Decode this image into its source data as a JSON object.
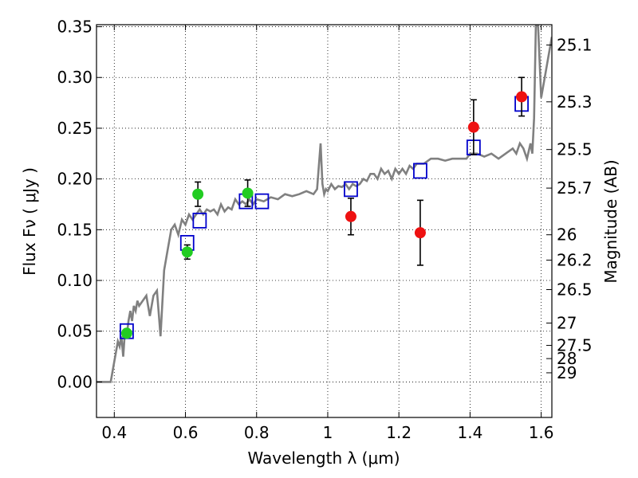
{
  "chart_data": {
    "type": "scatter",
    "xlabel": "Wavelength  λ (μm)",
    "ylabel": "Flux  Fν  ( μJy )",
    "ylabel2": "Magnitude (AB)",
    "xlim": [
      0.35,
      1.63
    ],
    "ylim": [
      -0.035,
      0.352
    ],
    "x_ticks": [
      0.4,
      0.6,
      0.8,
      1.0,
      1.2,
      1.4,
      1.6
    ],
    "x_tick_labels": [
      "0.4",
      "0.6",
      "0.8",
      "1",
      "1.2",
      "1.4",
      "1.6"
    ],
    "y_ticks": [
      0.0,
      0.05,
      0.1,
      0.15,
      0.2,
      0.25,
      0.3,
      0.35
    ],
    "y_tick_labels": [
      "0.00",
      "0.05",
      "0.10",
      "0.15",
      "0.20",
      "0.25",
      "0.30",
      "0.35"
    ],
    "mag_ticks": [
      {
        "label": "25.1",
        "flux": 0.332
      },
      {
        "label": "25.3",
        "flux": 0.276
      },
      {
        "label": "25.5",
        "flux": 0.229
      },
      {
        "label": "25.7",
        "flux": 0.191
      },
      {
        "label": "26",
        "flux": 0.145
      },
      {
        "label": "26.2",
        "flux": 0.12
      },
      {
        "label": "26.5",
        "flux": 0.091
      },
      {
        "label": "27",
        "flux": 0.058
      },
      {
        "label": "27.5",
        "flux": 0.036
      },
      {
        "label": "28",
        "flux": 0.023
      },
      {
        "label": "29",
        "flux": 0.009
      }
    ],
    "grid": true,
    "series": [
      {
        "kind": "line",
        "color": "#808080",
        "x": [
          0.35,
          0.38,
          0.39,
          0.4,
          0.41,
          0.415,
          0.42,
          0.425,
          0.43,
          0.435,
          0.44,
          0.445,
          0.45,
          0.455,
          0.46,
          0.465,
          0.47,
          0.48,
          0.49,
          0.5,
          0.51,
          0.52,
          0.53,
          0.54,
          0.55,
          0.56,
          0.57,
          0.58,
          0.59,
          0.6,
          0.61,
          0.62,
          0.63,
          0.64,
          0.65,
          0.66,
          0.67,
          0.68,
          0.69,
          0.7,
          0.71,
          0.72,
          0.73,
          0.74,
          0.75,
          0.76,
          0.77,
          0.78,
          0.79,
          0.8,
          0.82,
          0.84,
          0.86,
          0.88,
          0.9,
          0.92,
          0.94,
          0.96,
          0.97,
          0.98,
          0.985,
          0.99,
          0.995,
          1.0,
          1.01,
          1.02,
          1.03,
          1.04,
          1.05,
          1.06,
          1.07,
          1.08,
          1.09,
          1.1,
          1.11,
          1.12,
          1.13,
          1.14,
          1.15,
          1.16,
          1.17,
          1.18,
          1.19,
          1.2,
          1.21,
          1.22,
          1.23,
          1.24,
          1.25,
          1.27,
          1.29,
          1.31,
          1.33,
          1.35,
          1.37,
          1.39,
          1.4,
          1.42,
          1.44,
          1.46,
          1.48,
          1.5,
          1.52,
          1.53,
          1.54,
          1.55,
          1.56,
          1.57,
          1.575,
          1.58,
          1.585,
          1.59,
          1.6,
          1.61,
          1.62,
          1.63
        ],
        "y": [
          0.0,
          0.0,
          0.0,
          0.02,
          0.04,
          0.035,
          0.045,
          0.025,
          0.05,
          0.045,
          0.06,
          0.07,
          0.06,
          0.075,
          0.07,
          0.08,
          0.075,
          0.08,
          0.085,
          0.065,
          0.085,
          0.09,
          0.045,
          0.11,
          0.13,
          0.15,
          0.155,
          0.145,
          0.16,
          0.155,
          0.165,
          0.16,
          0.165,
          0.17,
          0.165,
          0.17,
          0.168,
          0.17,
          0.165,
          0.175,
          0.168,
          0.172,
          0.17,
          0.18,
          0.175,
          0.178,
          0.175,
          0.18,
          0.175,
          0.18,
          0.178,
          0.182,
          0.18,
          0.185,
          0.183,
          0.185,
          0.188,
          0.185,
          0.19,
          0.235,
          0.195,
          0.185,
          0.19,
          0.188,
          0.195,
          0.19,
          0.193,
          0.192,
          0.195,
          0.19,
          0.195,
          0.193,
          0.195,
          0.2,
          0.198,
          0.205,
          0.205,
          0.2,
          0.21,
          0.205,
          0.208,
          0.2,
          0.21,
          0.205,
          0.21,
          0.205,
          0.213,
          0.21,
          0.215,
          0.215,
          0.22,
          0.22,
          0.218,
          0.22,
          0.22,
          0.22,
          0.225,
          0.225,
          0.222,
          0.225,
          0.22,
          0.225,
          0.23,
          0.225,
          0.235,
          0.23,
          0.22,
          0.235,
          0.225,
          0.26,
          0.35,
          0.36,
          0.28,
          0.3,
          0.32,
          0.34
        ]
      },
      {
        "kind": "model_squares",
        "color": "#0000cc",
        "x": [
          0.435,
          0.605,
          0.64,
          0.77,
          0.815,
          1.065,
          1.26,
          1.41,
          1.545
        ],
        "y": [
          0.05,
          0.137,
          0.159,
          0.178,
          0.178,
          0.19,
          0.208,
          0.231,
          0.274
        ]
      },
      {
        "kind": "points",
        "color": "#22cc22",
        "x": [
          0.435,
          0.605,
          0.635,
          0.775
        ],
        "y": [
          0.048,
          0.128,
          0.185,
          0.186
        ],
        "err": [
          0.0,
          0.007,
          0.012,
          0.013
        ]
      },
      {
        "kind": "points",
        "color": "#ee1111",
        "x": [
          1.065,
          1.26,
          1.41,
          1.545
        ],
        "y": [
          0.163,
          0.147,
          0.251,
          0.281
        ],
        "err": [
          0.018,
          0.032,
          0.027,
          0.019
        ]
      }
    ]
  }
}
